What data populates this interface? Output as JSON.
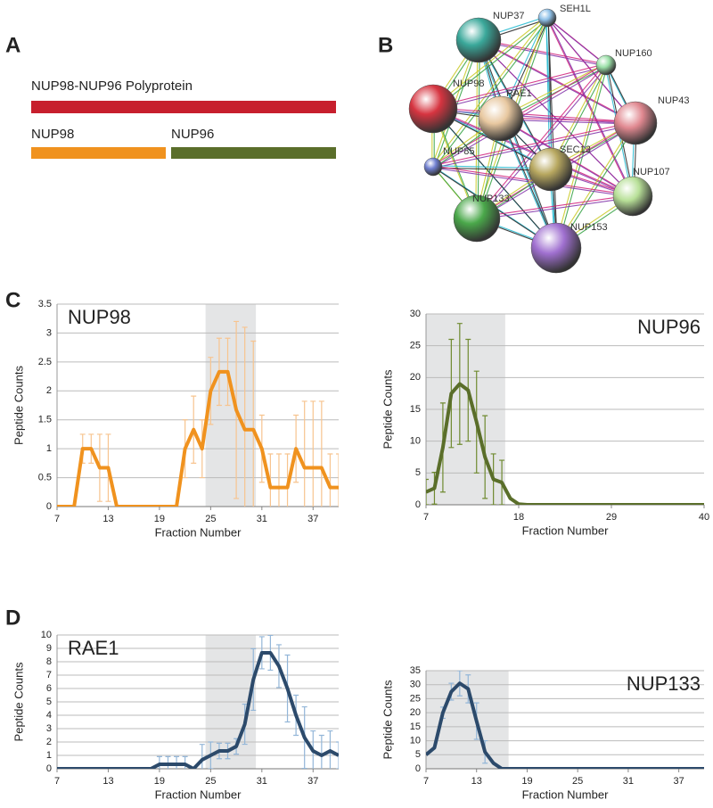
{
  "panel_labels": [
    "A",
    "B",
    "C",
    "D"
  ],
  "panel_a": {
    "full": "NUP98-NUP96 Polyprotein",
    "part1": "NUP98",
    "part2": "NUP96"
  },
  "panel_b": {
    "nodes": [
      "NUP37",
      "SEH1L",
      "NUP160",
      "NUP98",
      "RAE1",
      "NUP43",
      "NUP85",
      "SEC13",
      "NUP107",
      "NUP133",
      "NUP153"
    ]
  },
  "chart_data": [
    {
      "type": "line",
      "title": "NUP98",
      "xlabel": "Fraction Number",
      "ylabel": "Peptide Counts",
      "x": [
        7,
        8,
        9,
        10,
        11,
        12,
        13,
        14,
        15,
        16,
        17,
        18,
        19,
        20,
        21,
        22,
        23,
        24,
        25,
        26,
        27,
        28,
        29,
        30,
        31,
        32,
        33,
        34,
        35,
        36,
        37,
        38,
        39,
        40
      ],
      "values": [
        0,
        0,
        0,
        1,
        1,
        0.67,
        0.67,
        0,
        0,
        0,
        0,
        0,
        0,
        0,
        0,
        1,
        1.33,
        1,
        2,
        2.33,
        2.33,
        1.67,
        1.33,
        1.33,
        1,
        0.33,
        0.33,
        0.33,
        1,
        0.67,
        0.67,
        0.67,
        0.33,
        0.33
      ],
      "errors": [
        0,
        0,
        0,
        0.25,
        0.25,
        0.58,
        0.58,
        0,
        0,
        0,
        0,
        0,
        0,
        0,
        0,
        0.5,
        0.58,
        0.5,
        0.58,
        0.58,
        0.58,
        1.53,
        1.77,
        1.53,
        0.58,
        0.58,
        0.58,
        0.58,
        0.58,
        1.15,
        1.15,
        1.15,
        0.58,
        0.58
      ],
      "color": "#f0921e",
      "error_color": "#f7c48f",
      "shade": [
        24.4,
        30.3
      ],
      "xlim": [
        7,
        40
      ],
      "ylim": [
        0,
        3.5
      ],
      "xticks": [
        7,
        13,
        19,
        25,
        31,
        37
      ],
      "yticks": [
        0,
        0.5,
        1,
        1.5,
        2,
        2.5,
        3,
        3.5
      ],
      "grid": true
    },
    {
      "type": "line",
      "title": "NUP96",
      "xlabel": "Fraction Number",
      "ylabel": "Peptide Counts",
      "x": [
        7,
        8,
        9,
        10,
        11,
        12,
        13,
        14,
        15,
        16,
        17,
        18,
        19,
        20,
        21,
        22,
        23,
        24,
        25,
        26,
        27,
        28,
        29,
        30,
        31,
        32,
        33,
        34,
        35,
        36,
        37,
        38,
        39,
        40
      ],
      "values": [
        2,
        2.6,
        9,
        17.5,
        19,
        18,
        13,
        7.5,
        4,
        3.5,
        1,
        0.1,
        0,
        0,
        0,
        0,
        0,
        0,
        0,
        0,
        0,
        0,
        0,
        0,
        0,
        0,
        0,
        0,
        0,
        0,
        0,
        0,
        0,
        0
      ],
      "errors": [
        2,
        2.5,
        7,
        8.5,
        9.5,
        8,
        8,
        6.5,
        4,
        3.5,
        0,
        0,
        0,
        0,
        0,
        0,
        0,
        0,
        0,
        0,
        0,
        0,
        0,
        0,
        0,
        0,
        0,
        0,
        0,
        0,
        0,
        0,
        0,
        0
      ],
      "color": "#5a6e2a",
      "error_color": "#6f8a30",
      "shade": [
        7,
        16.4
      ],
      "xlim": [
        7,
        40
      ],
      "ylim": [
        0,
        30
      ],
      "xticks": [
        7,
        18,
        29,
        40
      ],
      "yticks": [
        0,
        5,
        10,
        15,
        20,
        25,
        30
      ],
      "grid": true
    },
    {
      "type": "line",
      "title": "RAE1",
      "xlabel": "Fraction Number",
      "ylabel": "Peptide Counts",
      "x": [
        7,
        8,
        9,
        10,
        11,
        12,
        13,
        14,
        15,
        16,
        17,
        18,
        19,
        20,
        21,
        22,
        23,
        24,
        25,
        26,
        27,
        28,
        29,
        30,
        31,
        32,
        33,
        34,
        35,
        36,
        37,
        38,
        39,
        40
      ],
      "values": [
        0,
        0,
        0,
        0,
        0,
        0,
        0,
        0,
        0,
        0,
        0,
        0,
        0.33,
        0.33,
        0.33,
        0.33,
        0,
        0.67,
        1,
        1.33,
        1.33,
        1.67,
        3.33,
        6.67,
        8.67,
        8.67,
        7.67,
        6,
        4,
        2.33,
        1.33,
        1,
        1.33,
        1
      ],
      "errors": [
        0,
        0,
        0,
        0,
        0,
        0,
        0,
        0,
        0,
        0,
        0,
        0,
        0.58,
        0.58,
        0.58,
        0.58,
        0,
        1.15,
        1,
        0.58,
        0.58,
        0.58,
        1.5,
        2.3,
        1.2,
        1.3,
        1.6,
        2.5,
        1.5,
        2.3,
        1.5,
        1.5,
        1.5,
        1
      ],
      "color": "#2c4a6b",
      "error_color": "#93b6d8",
      "shade": [
        24.4,
        30.3
      ],
      "xlim": [
        7,
        40
      ],
      "ylim": [
        0,
        10
      ],
      "xticks": [
        7,
        13,
        19,
        25,
        31,
        37
      ],
      "yticks": [
        0,
        1,
        2,
        3,
        4,
        5,
        6,
        7,
        8,
        9,
        10
      ],
      "grid": true
    },
    {
      "type": "line",
      "title": "NUP133",
      "xlabel": "Fraction Number",
      "ylabel": "Peptide Counts",
      "x": [
        7,
        8,
        9,
        10,
        11,
        12,
        13,
        14,
        15,
        16,
        17,
        18,
        19,
        20,
        21,
        22,
        23,
        24,
        25,
        26,
        27,
        28,
        29,
        30,
        31,
        32,
        33,
        34,
        35,
        36,
        37,
        38,
        39,
        40
      ],
      "values": [
        5,
        7.5,
        20,
        27.5,
        30.5,
        28.5,
        17,
        6,
        2,
        0,
        0,
        0,
        0,
        0,
        0,
        0,
        0,
        0,
        0,
        0,
        0,
        0,
        0,
        0,
        0,
        0,
        0,
        0,
        0,
        0,
        0,
        0,
        0,
        0
      ],
      "errors": [
        0,
        0,
        2,
        3,
        4.5,
        5,
        6.5,
        4,
        0,
        0,
        0,
        0,
        0,
        0,
        0,
        0,
        0,
        0,
        0,
        0,
        0,
        0,
        0,
        0,
        0,
        0,
        0,
        0,
        0,
        0,
        0,
        0,
        0,
        0
      ],
      "color": "#2c4a6b",
      "error_color": "#93b6d8",
      "shade": [
        7,
        16.8
      ],
      "xlim": [
        7,
        40
      ],
      "ylim": [
        0,
        35
      ],
      "xticks": [
        7,
        13,
        19,
        25,
        31,
        37
      ],
      "yticks": [
        0,
        5,
        10,
        15,
        20,
        25,
        30,
        35
      ],
      "grid": true
    }
  ]
}
